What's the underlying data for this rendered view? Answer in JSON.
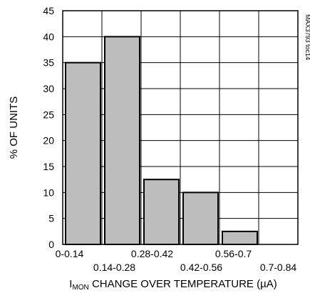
{
  "chart_data": {
    "type": "bar",
    "categories": [
      "0-0.14",
      "0.14-0.28",
      "0.28-0.42",
      "0.42-0.56",
      "0.56-0.7",
      "0.7-0.84"
    ],
    "values": [
      35,
      40,
      12.5,
      10,
      2.5,
      0
    ],
    "title": "",
    "xlabel_sub": "I",
    "xlabel_subscript": "MON",
    "xlabel_rest": " CHANGE OVER TEMPERATURE (µA)",
    "ylabel": "% OF UNITS",
    "ylim": [
      0,
      45
    ],
    "yticks": [
      0,
      5,
      10,
      15,
      20,
      25,
      30,
      35,
      40,
      45
    ],
    "grid": true,
    "side_note": "MAX3793 toc14"
  }
}
